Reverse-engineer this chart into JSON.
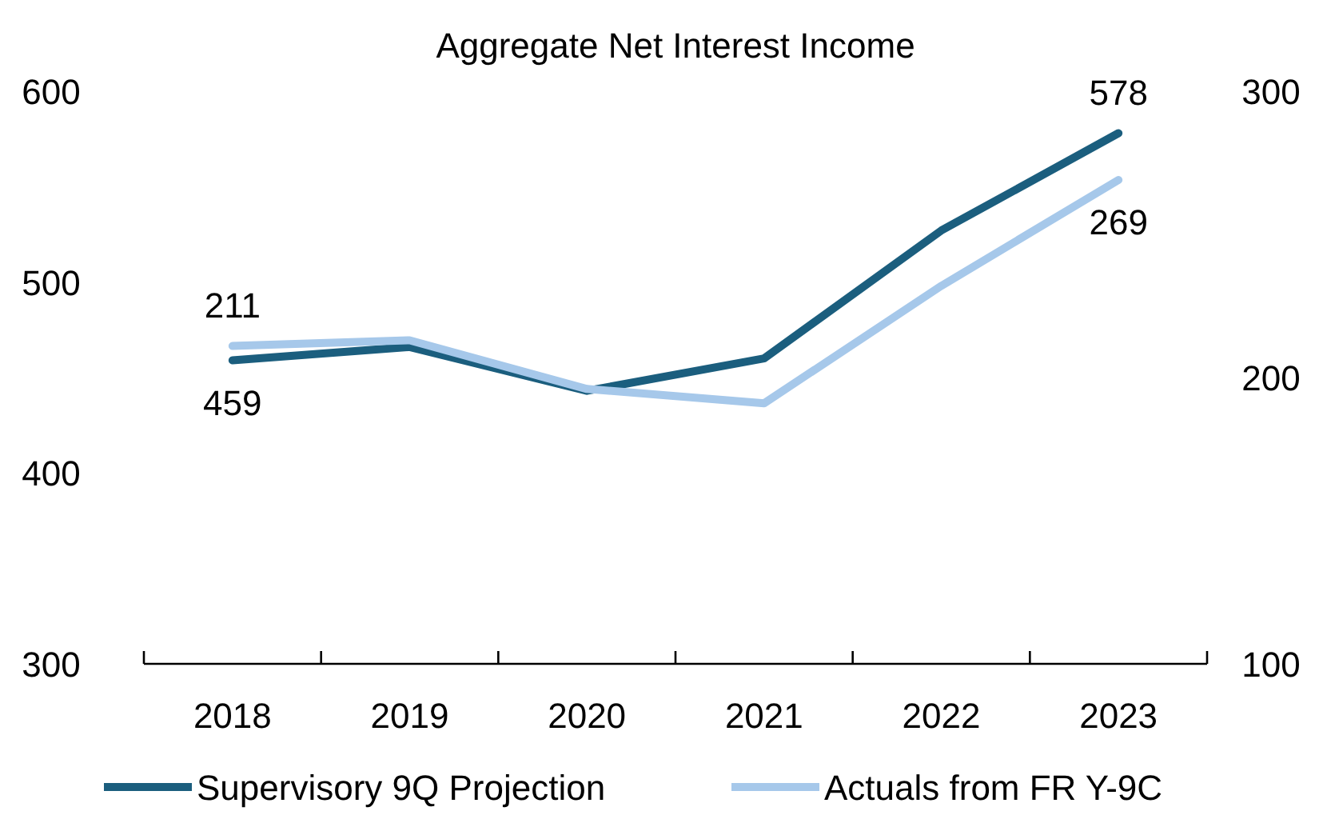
{
  "chart_data": {
    "type": "line",
    "title": "Aggregate Net Interest Income",
    "categories": [
      "2018",
      "2019",
      "2020",
      "2021",
      "2022",
      "2023"
    ],
    "series": [
      {
        "name": "Supervisory 9Q Projection",
        "color": "#1b5e7e",
        "values": [
          459,
          466,
          443,
          460,
          527,
          578
        ],
        "value_labels": [
          "459",
          null,
          null,
          null,
          null,
          "578"
        ]
      },
      {
        "name": "Actuals from FR Y-9C",
        "color": "#a6c8ea",
        "axis": "y2",
        "values": [
          211,
          213,
          196,
          191,
          232,
          269
        ],
        "value_labels": [
          "211",
          null,
          null,
          null,
          null,
          "269"
        ]
      }
    ],
    "ylim": [
      300,
      600
    ],
    "yticks": [
      300,
      400,
      500,
      600
    ],
    "y2lim": [
      100,
      300
    ],
    "y2ticks": [
      100,
      200,
      300
    ],
    "grid": false,
    "legend": "bottom",
    "line_style": "solid",
    "marker": "none"
  }
}
